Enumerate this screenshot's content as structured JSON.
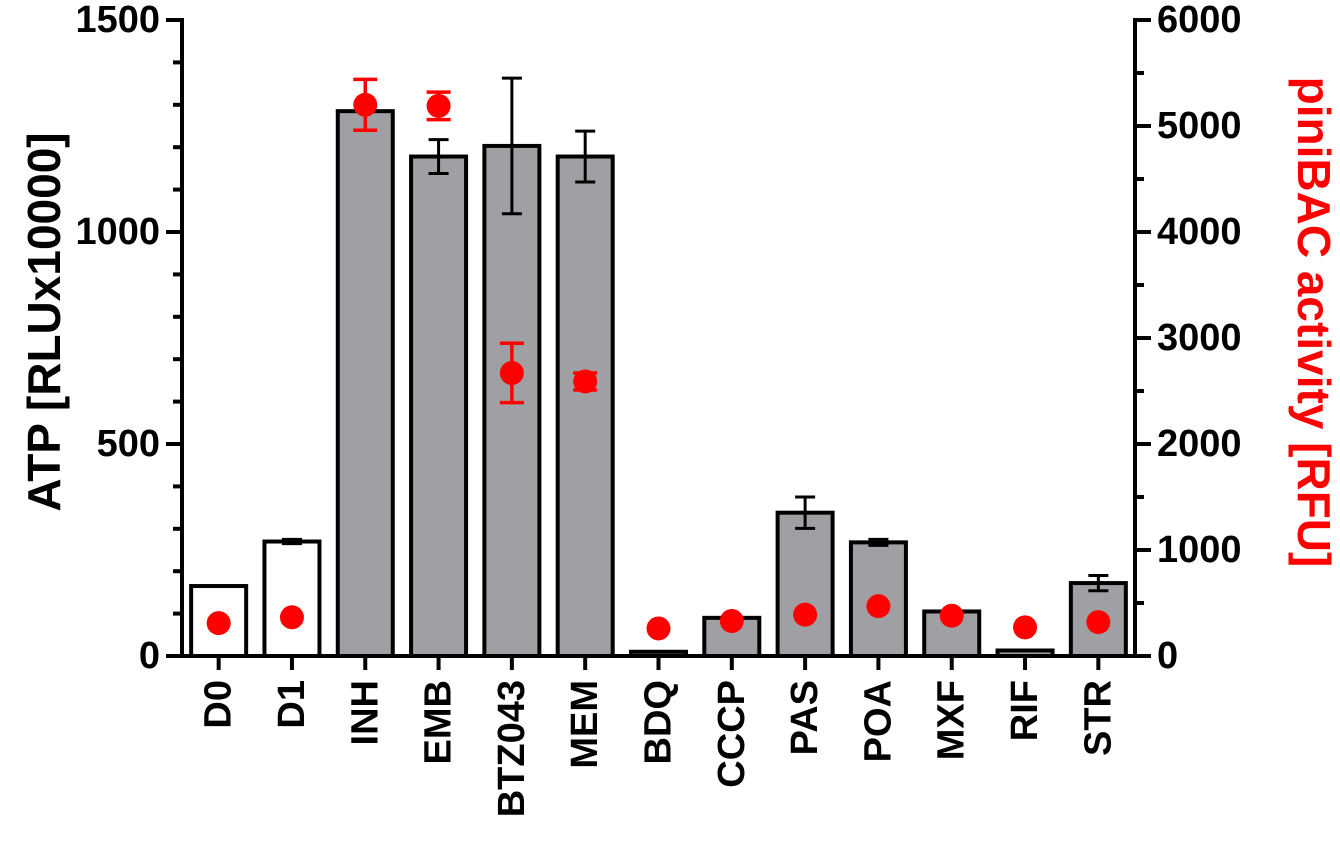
{
  "chart_data": {
    "type": "bar",
    "title": "",
    "xlabel": "",
    "categories": [
      "D0",
      "D1",
      "INH",
      "EMB",
      "BTZ043",
      "MEM",
      "BDQ",
      "CCCP",
      "PAS",
      "POA",
      "MXF",
      "RIF",
      "STR"
    ],
    "bar_fill": [
      "white",
      "white",
      "gray",
      "gray",
      "gray",
      "gray",
      "gray",
      "gray",
      "gray",
      "gray",
      "gray",
      "gray",
      "gray"
    ],
    "colors": {
      "bar_gray": "#a0a0a4",
      "bar_white": "#ffffff",
      "axis": "#000000",
      "points": "#ff0000"
    },
    "left_axis": {
      "label": "ATP [RLUx10000]",
      "ylim": [
        0,
        1500
      ],
      "ticks": [
        "0",
        "500",
        "1000",
        "1500"
      ]
    },
    "right_axis": {
      "label": "piniBAC activity [RFU]",
      "ylim": [
        0,
        6000
      ],
      "ticks": [
        "0",
        "1000",
        "2000",
        "3000",
        "4000",
        "5000",
        "6000"
      ]
    },
    "series": [
      {
        "type": "bar",
        "axis": "left",
        "values": [
          165,
          270,
          1285,
          1178,
          1203,
          1178,
          10,
          90,
          338,
          268,
          105,
          13,
          172
        ],
        "errors": [
          0,
          5,
          0,
          40,
          160,
          60,
          0,
          0,
          37,
          7,
          0,
          0,
          18
        ]
      },
      {
        "type": "scatter",
        "axis": "right",
        "values": [
          310,
          365,
          5200,
          5190,
          2670,
          2590,
          260,
          330,
          390,
          470,
          380,
          270,
          320
        ],
        "errors": [
          0,
          0,
          240,
          130,
          280,
          80,
          0,
          0,
          0,
          0,
          0,
          0,
          0
        ]
      }
    ]
  }
}
